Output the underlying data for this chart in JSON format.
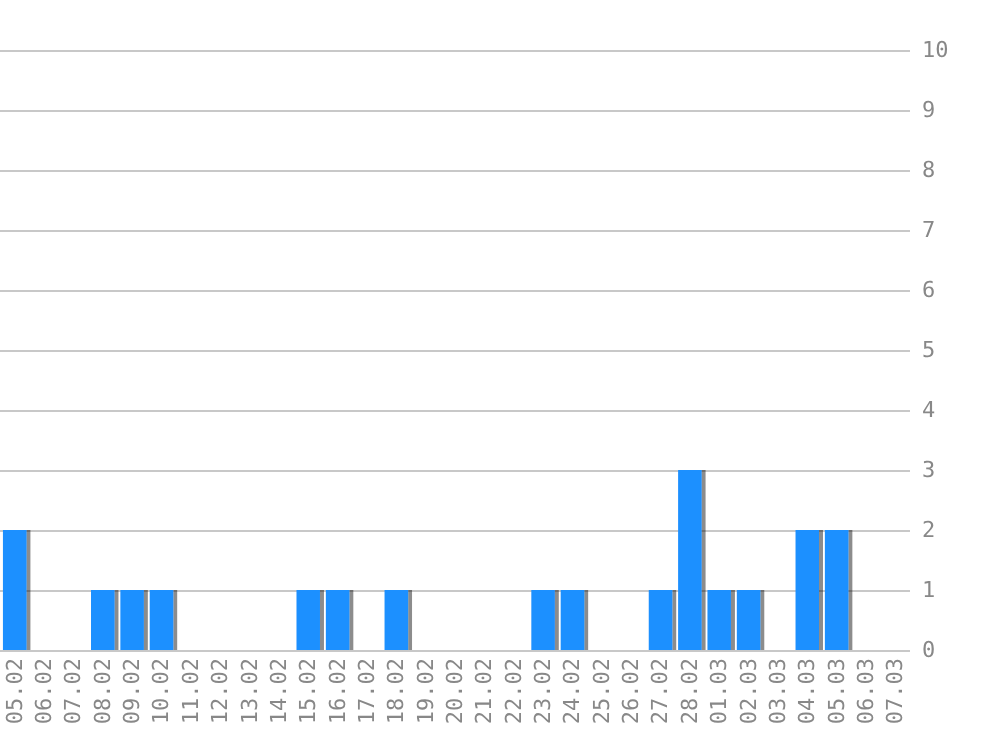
{
  "chart_data": {
    "type": "bar",
    "categories": [
      "05.02",
      "06.02",
      "07.02",
      "08.02",
      "09.02",
      "10.02",
      "11.02",
      "12.02",
      "13.02",
      "14.02",
      "15.02",
      "16.02",
      "17.02",
      "18.02",
      "19.02",
      "20.02",
      "21.02",
      "22.02",
      "23.02",
      "24.02",
      "25.02",
      "26.02",
      "27.02",
      "28.02",
      "01.03",
      "02.03",
      "03.03",
      "04.03",
      "05.03",
      "06.03",
      "07.03"
    ],
    "values": [
      2,
      0,
      0,
      1,
      1,
      1,
      0,
      0,
      0,
      0,
      1,
      1,
      0,
      1,
      0,
      0,
      0,
      0,
      1,
      1,
      0,
      0,
      1,
      3,
      1,
      1,
      0,
      2,
      2,
      0,
      0
    ],
    "color": "#1e90ff",
    "ylim": [
      0,
      10
    ],
    "yticks": [
      0,
      1,
      2,
      3,
      4,
      5,
      6,
      7,
      8,
      9,
      10
    ],
    "grid": "y"
  }
}
